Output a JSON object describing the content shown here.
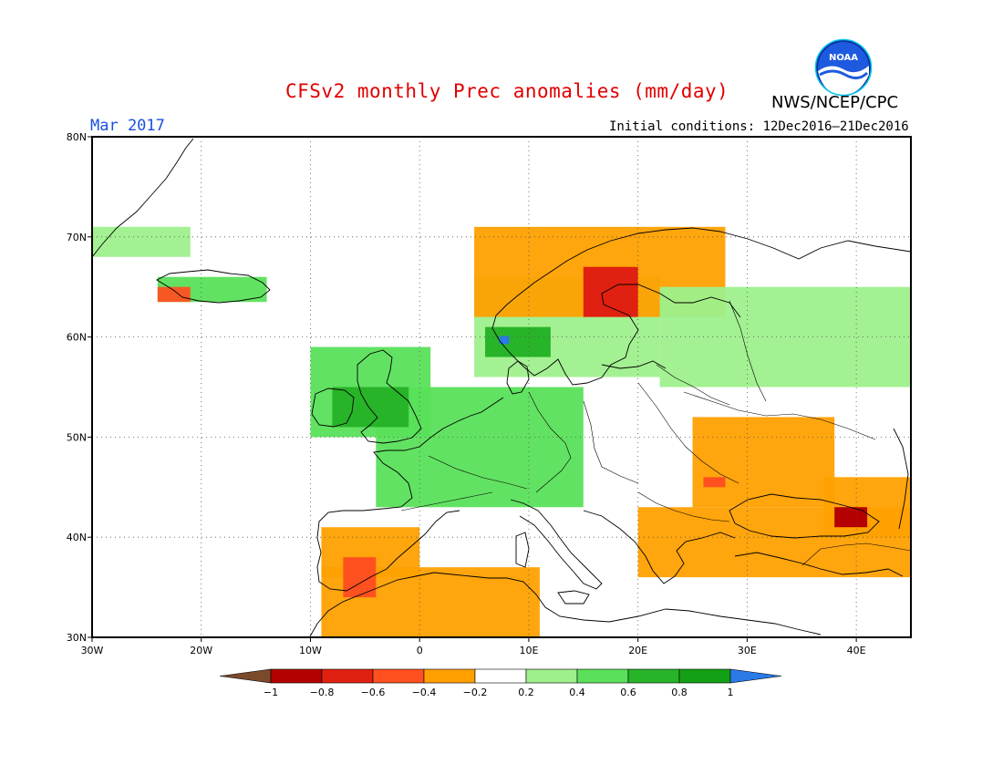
{
  "header": {
    "title": "CFSv2 monthly Prec anomalies (mm/day)",
    "month": "Mar 2017",
    "initial_conditions": "Initial conditions: 12Dec2016–21Dec2016",
    "agency": "NWS/NCEP/CPC",
    "logo_text": "NOAA"
  },
  "map": {
    "lon_range": [
      -30,
      45
    ],
    "lat_range": [
      30,
      80
    ],
    "lon_ticks": [
      {
        "value": -30,
        "label": "30W"
      },
      {
        "value": -20,
        "label": "20W"
      },
      {
        "value": -10,
        "label": "10W"
      },
      {
        "value": 0,
        "label": "0"
      },
      {
        "value": 10,
        "label": "10E"
      },
      {
        "value": 20,
        "label": "20E"
      },
      {
        "value": 30,
        "label": "30E"
      },
      {
        "value": 40,
        "label": "40E"
      }
    ],
    "lat_ticks": [
      {
        "value": 30,
        "label": "30N"
      },
      {
        "value": 40,
        "label": "40N"
      },
      {
        "value": 50,
        "label": "50N"
      },
      {
        "value": 60,
        "label": "60N"
      },
      {
        "value": 70,
        "label": "70N"
      },
      {
        "value": 80,
        "label": "80N"
      }
    ],
    "grid": "dotted"
  },
  "legend": {
    "labels": [
      "−1",
      "−0.8",
      "−0.6",
      "−0.4",
      "−0.2",
      "0.2",
      "0.4",
      "0.6",
      "0.8",
      "1"
    ],
    "colors": [
      "#7a4a2a",
      "#b40000",
      "#e02010",
      "#ff5020",
      "#ffa000",
      "#ffffff",
      "#9ef08c",
      "#5ae05a",
      "#28b428",
      "#14a014",
      "#2a7ae8"
    ]
  },
  "chart_data": {
    "type": "heatmap",
    "variable": "Prec anomalies (mm/day)",
    "anomaly_regions": [
      {
        "name": "Greenland east coast",
        "lon": [
          -30,
          -21
        ],
        "lat": [
          68,
          71
        ],
        "class": "0.2-0.4"
      },
      {
        "name": "Iceland",
        "lon": [
          -24,
          -14
        ],
        "lat": [
          63.5,
          66
        ],
        "class": "0.4-0.8"
      },
      {
        "name": "Iceland SW",
        "lon": [
          -24,
          -21
        ],
        "lat": [
          63.5,
          65
        ],
        "class": "-0.6 to -0.4"
      },
      {
        "name": "Ireland / Britain",
        "lon": [
          -10,
          1
        ],
        "lat": [
          50,
          59
        ],
        "class": "0.4-0.8"
      },
      {
        "name": "France / Benelux / Germany",
        "lon": [
          -4,
          15
        ],
        "lat": [
          43,
          55
        ],
        "class": "0.4-0.8"
      },
      {
        "name": "Scandinavia",
        "lon": [
          5,
          22
        ],
        "lat": [
          56,
          66
        ],
        "class": "0.2-0.6"
      },
      {
        "name": "Norway coast",
        "lon": [
          5,
          28
        ],
        "lat": [
          62,
          71
        ],
        "class": "-0.6 to -0.2"
      },
      {
        "name": "Western Russia",
        "lon": [
          22,
          45
        ],
        "lat": [
          55,
          65
        ],
        "class": "0.2-0.4"
      },
      {
        "name": "Iberia",
        "lon": [
          -9,
          0
        ],
        "lat": [
          36,
          41
        ],
        "class": "-0.6 to -0.2"
      },
      {
        "name": "North Africa",
        "lon": [
          -9,
          11
        ],
        "lat": [
          30,
          37
        ],
        "class": "-0.6 to -0.2"
      },
      {
        "name": "Ukraine / Romania",
        "lon": [
          25,
          38
        ],
        "lat": [
          43,
          52
        ],
        "class": "-0.4 to -0.2"
      },
      {
        "name": "Greece / Turkey",
        "lon": [
          20,
          45
        ],
        "lat": [
          36,
          43
        ],
        "class": "-0.6 to -0.2"
      },
      {
        "name": "Caucasus",
        "lon": [
          37,
          45
        ],
        "lat": [
          40,
          46
        ],
        "class": "-0.8 to -0.2"
      }
    ]
  }
}
